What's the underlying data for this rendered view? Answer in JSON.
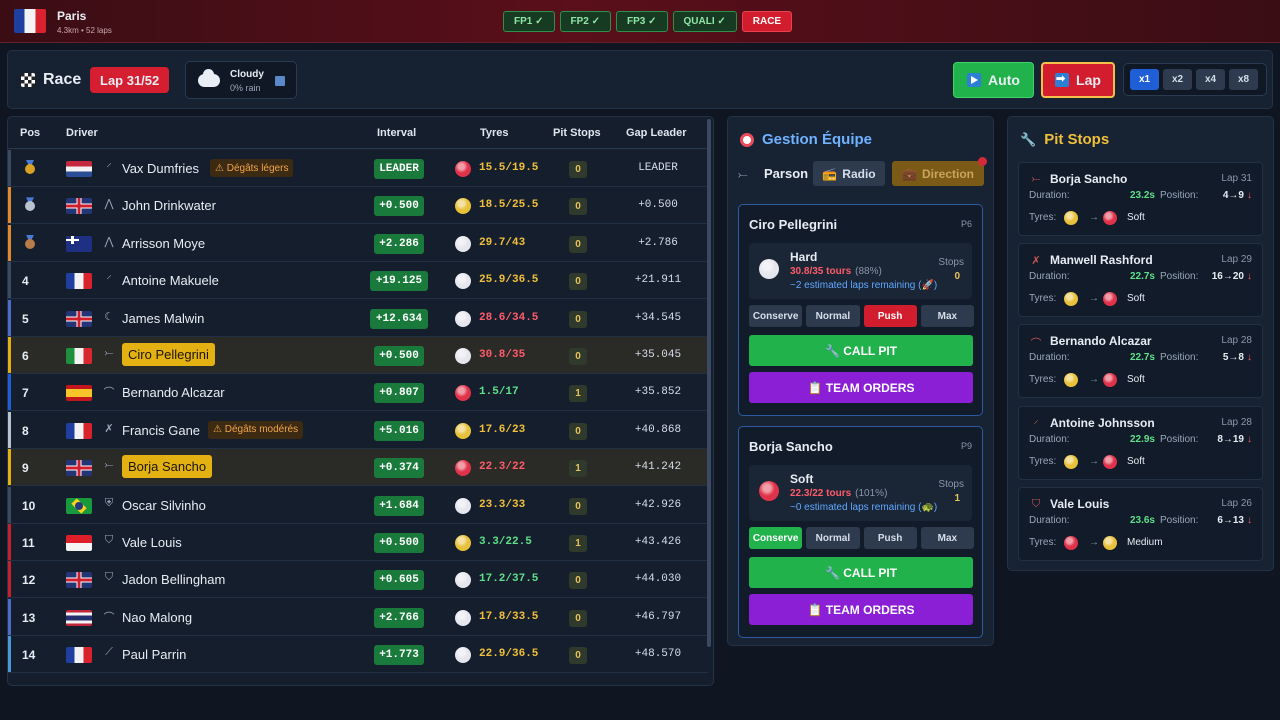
{
  "topbar": {
    "city": "Paris",
    "subtitle": "4.3km • 52 laps",
    "sessions": [
      "FP1 ✓",
      "FP2 ✓",
      "FP3 ✓",
      "QUALI ✓",
      "RACE"
    ]
  },
  "racebar": {
    "title": "Race",
    "lap": "Lap 31/52",
    "weather": "Cloudy",
    "rain": "0% rain",
    "auto_label": "Auto",
    "lap_label": "Lap",
    "speeds": [
      "x1",
      "x2",
      "x4",
      "x8"
    ]
  },
  "table": {
    "headers": {
      "pos": "Pos",
      "driver": "Driver",
      "interval": "Interval",
      "tyres": "Tyres",
      "pits": "Pit Stops",
      "gap": "Gap Leader"
    },
    "rows": [
      {
        "pos": "",
        "medal": "#d9a227",
        "side": "#3b4a62",
        "flag": "f-nl",
        "team": "⸍",
        "name": "Vax Dumfries",
        "dmg": "⚠ Dégâts légers",
        "interval": "LEADER",
        "tyre": "#e0324a",
        "wear": "15.5/19.5",
        "wear_color": "#f0c03a",
        "pits": "0",
        "gap": "LEADER"
      },
      {
        "pos": "",
        "medal": "#b9c2cf",
        "side": "#e08a2a",
        "flag": "f-gb",
        "team": "⋀",
        "name": "John Drinkwater",
        "dmg": "",
        "interval": "+0.500",
        "tyre": "#e8c13a",
        "wear": "18.5/25.5",
        "wear_color": "#f0c03a",
        "pits": "0",
        "gap": "+0.500"
      },
      {
        "pos": "",
        "medal": "#b87c4a",
        "side": "#e08a2a",
        "flag": "f-au",
        "team": "⋀",
        "name": "Arrisson Moye",
        "dmg": "",
        "interval": "+2.286",
        "tyre": "#e6e6ee",
        "wear": "29.7/43",
        "wear_color": "#f0c03a",
        "pits": "0",
        "gap": "+2.786"
      },
      {
        "pos": "4",
        "medal": "",
        "side": "#3b4a62",
        "flag": "f-fr",
        "team": "⸍",
        "name": "Antoine Makuele",
        "dmg": "",
        "interval": "+19.125",
        "tyre": "#e6e6ee",
        "wear": "25.9/36.5",
        "wear_color": "#f0c03a",
        "pits": "0",
        "gap": "+21.911"
      },
      {
        "pos": "5",
        "medal": "",
        "side": "#4a6ec8",
        "flag": "f-gb",
        "team": "☾",
        "name": "James Malwin",
        "dmg": "",
        "interval": "+12.634",
        "tyre": "#e6e6ee",
        "wear": "28.6/34.5",
        "wear_color": "#ff5c6b",
        "pits": "0",
        "gap": "+34.545"
      },
      {
        "pos": "6",
        "medal": "",
        "side": "#e3b212",
        "flag": "f-it",
        "team": "⤚",
        "name": "Ciro Pellegrini",
        "dmg": "",
        "interval": "+0.500",
        "tyre": "#e6e6ee",
        "wear": "30.8/35",
        "wear_color": "#ff5c6b",
        "pits": "0",
        "gap": "+35.045",
        "hl": true
      },
      {
        "pos": "7",
        "medal": "",
        "side": "#1f5fd6",
        "flag": "f-es",
        "team": "⌒",
        "name": "Bernando Alcazar",
        "dmg": "",
        "interval": "+0.807",
        "tyre": "#e0324a",
        "wear": "1.5/17",
        "wear_color": "#5fe08a",
        "pits": "1",
        "gap": "+35.852"
      },
      {
        "pos": "8",
        "medal": "",
        "side": "#b9c2cf",
        "flag": "f-fr",
        "team": "✗",
        "name": "Francis Gane",
        "dmg": "⚠ Dégâts modérés",
        "interval": "+5.016",
        "tyre": "#e8c13a",
        "wear": "17.6/23",
        "wear_color": "#f0c03a",
        "pits": "0",
        "gap": "+40.868"
      },
      {
        "pos": "9",
        "medal": "",
        "side": "#e3b212",
        "flag": "f-gb",
        "team": "⤚",
        "name": "Borja Sancho",
        "dmg": "",
        "interval": "+0.374",
        "tyre": "#e0324a",
        "wear": "22.3/22",
        "wear_color": "#ff5c6b",
        "pits": "1",
        "gap": "+41.242",
        "hl": true
      },
      {
        "pos": "10",
        "medal": "",
        "side": "#3b4a62",
        "flag": "f-br",
        "team": "⛨",
        "name": "Oscar Silvinho",
        "dmg": "",
        "interval": "+1.684",
        "tyre": "#e6e6ee",
        "wear": "23.3/33",
        "wear_color": "#f0c03a",
        "pits": "0",
        "gap": "+42.926"
      },
      {
        "pos": "11",
        "medal": "",
        "side": "#c42030",
        "flag": "f-id",
        "team": "⛉",
        "name": "Vale Louis",
        "dmg": "",
        "interval": "+0.500",
        "tyre": "#e8c13a",
        "wear": "3.3/22.5",
        "wear_color": "#5fe08a",
        "pits": "1",
        "gap": "+43.426"
      },
      {
        "pos": "12",
        "medal": "",
        "side": "#c42030",
        "flag": "f-gb",
        "team": "⛉",
        "name": "Jadon Bellingham",
        "dmg": "",
        "interval": "+0.605",
        "tyre": "#e6e6ee",
        "wear": "17.2/37.5",
        "wear_color": "#5fe08a",
        "pits": "0",
        "gap": "+44.030"
      },
      {
        "pos": "13",
        "medal": "",
        "side": "#4a6ec8",
        "flag": "f-th",
        "team": "⌒",
        "name": "Nao Malong",
        "dmg": "",
        "interval": "+2.766",
        "tyre": "#e6e6ee",
        "wear": "17.8/33.5",
        "wear_color": "#f0c03a",
        "pits": "0",
        "gap": "+46.797"
      },
      {
        "pos": "14",
        "medal": "",
        "side": "#4a9ad6",
        "flag": "f-fr",
        "team": "⟋",
        "name": "Paul Parrin",
        "dmg": "",
        "interval": "+1.773",
        "tyre": "#e6e6ee",
        "wear": "22.9/36.5",
        "wear_color": "#f0c03a",
        "pits": "0",
        "gap": "+48.570"
      }
    ]
  },
  "team": {
    "title": "Gestion Équipe",
    "manager": "Parson",
    "radio": "Radio",
    "direction": "Direction",
    "cards": [
      {
        "name": "Ciro Pellegrini",
        "pos": "P6",
        "compound": "Hard",
        "tyre_color": "#e6e6ee",
        "laps": "30.8/35 tours",
        "pct": "(88%)",
        "est": "~2 estimated laps remaining (🚀)",
        "stops_label": "Stops",
        "stops": "0",
        "modes": [
          "Conserve",
          "Normal",
          "Push",
          "Max"
        ],
        "active_mode": 2,
        "call_pit": "🔧 CALL PIT",
        "orders": "📋 TEAM ORDERS"
      },
      {
        "name": "Borja Sancho",
        "pos": "P9",
        "compound": "Soft",
        "tyre_color": "#e0324a",
        "laps": "22.3/22 tours",
        "pct": "(101%)",
        "est": "~0 estimated laps remaining (🐢)",
        "stops_label": "Stops",
        "stops": "1",
        "modes": [
          "Conserve",
          "Normal",
          "Push",
          "Max"
        ],
        "active_mode": 0,
        "call_pit": "🔧 CALL PIT",
        "orders": "📋 TEAM ORDERS"
      }
    ]
  },
  "pits": {
    "title": "Pit Stops",
    "duration_label": "Duration:",
    "position_label": "Position:",
    "tyres_label": "Tyres:",
    "entries": [
      {
        "icon": "⤚",
        "name": "Borja Sancho",
        "lap": "Lap 31",
        "duration": "23.2s",
        "position": "4→9",
        "arrow": "↓",
        "from": "#e8c13a",
        "to": "#e0324a",
        "compound": "Soft"
      },
      {
        "icon": "✗",
        "name": "Manwell Rashford",
        "lap": "Lap 29",
        "duration": "22.7s",
        "position": "16→20",
        "arrow": "↓",
        "from": "#e8c13a",
        "to": "#e0324a",
        "compound": "Soft"
      },
      {
        "icon": "⌒",
        "name": "Bernando Alcazar",
        "lap": "Lap 28",
        "duration": "22.7s",
        "position": "5→8",
        "arrow": "↓",
        "from": "#e8c13a",
        "to": "#e0324a",
        "compound": "Soft"
      },
      {
        "icon": "⸍",
        "name": "Antoine Johnsson",
        "lap": "Lap 28",
        "duration": "22.9s",
        "position": "8→19",
        "arrow": "↓",
        "from": "#e8c13a",
        "to": "#e0324a",
        "compound": "Soft"
      },
      {
        "icon": "⛉",
        "name": "Vale Louis",
        "lap": "Lap 26",
        "duration": "23.6s",
        "position": "6→13",
        "arrow": "↓",
        "from": "#e0324a",
        "to": "#e8c13a",
        "compound": "Medium"
      }
    ]
  }
}
